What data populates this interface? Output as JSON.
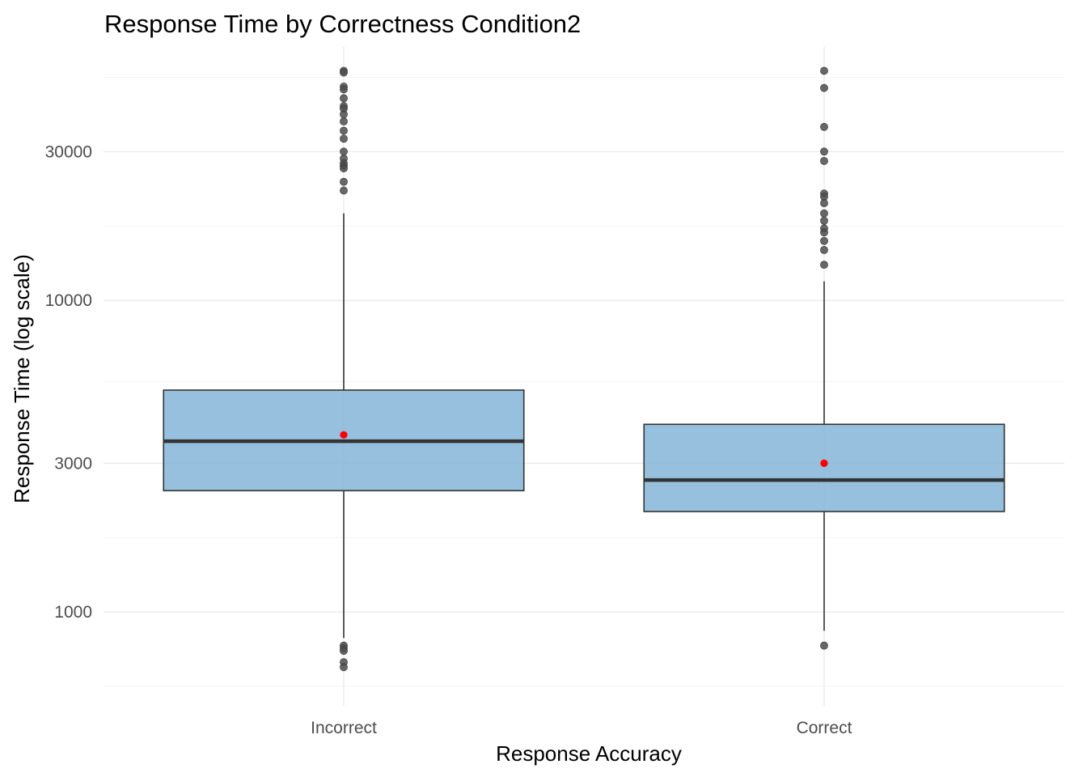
{
  "chart_data": {
    "type": "box",
    "title": "Response Time by Correctness Condition2",
    "xlabel": "Response Accuracy",
    "ylabel": "Response Time (log scale)",
    "y_scale": "log10",
    "ylim": [
      500,
      65000
    ],
    "y_ticks": [
      1000,
      3000,
      10000,
      30000
    ],
    "grid": true,
    "colors": {
      "box_fill": "#7fb2d5",
      "box_outline": "#333333",
      "median": "#333333",
      "mean_point": "#ff0000",
      "outlier": "#4d4d4d"
    },
    "categories": [
      "Incorrect",
      "Correct"
    ],
    "boxes": [
      {
        "category": "Incorrect",
        "whisker_low": 825,
        "q1": 2450,
        "median": 3530,
        "q3": 5150,
        "whisker_high": 19000,
        "mean": 3700,
        "outliers": [
          54500,
          53800,
          48500,
          47500,
          44500,
          42000,
          41200,
          39500,
          37500,
          35000,
          33000,
          30000,
          28500,
          27500,
          27000,
          26500,
          24000,
          22500,
          780,
          765,
          750,
          690,
          665
        ]
      },
      {
        "category": "Correct",
        "whisker_low": 870,
        "q1": 2100,
        "median": 2650,
        "q3": 4000,
        "whisker_high": 11500,
        "mean": 3000,
        "outliers": [
          54500,
          48000,
          36000,
          30000,
          28000,
          22000,
          21500,
          20500,
          19000,
          18000,
          17000,
          16500,
          15500,
          14500,
          13000,
          780
        ]
      }
    ]
  }
}
